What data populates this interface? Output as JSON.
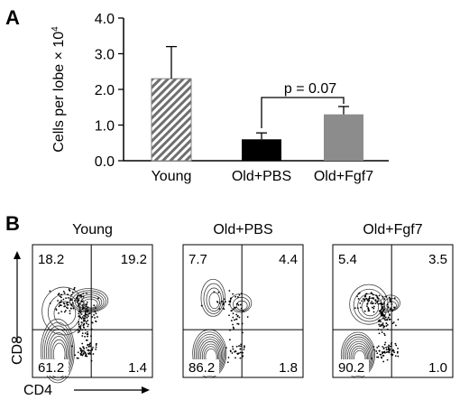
{
  "panels": {
    "a_label": "A",
    "b_label": "B"
  },
  "chart_data": [
    {
      "type": "bar",
      "panel": "A",
      "categories": [
        "Young",
        "Old+PBS",
        "Old+Fgf7"
      ],
      "values": [
        2.3,
        0.6,
        1.3
      ],
      "error_upper": [
        0.9,
        0.18,
        0.22
      ],
      "ylabel": "Cells per lobe × 10",
      "ylabel_sup": "4",
      "ylim": [
        0,
        4.0
      ],
      "ytick_labels": [
        "0.0",
        "1.0",
        "2.0",
        "3.0",
        "4.0"
      ],
      "bar_styles": [
        "diagonal-hatch",
        "solid",
        "solid"
      ],
      "bar_colors": [
        "#7f7f7f",
        "#000000",
        "#8c8c8c"
      ],
      "annotation": {
        "text": "p = 0.07",
        "between": [
          "Old+PBS",
          "Old+Fgf7"
        ]
      },
      "grid": false
    },
    {
      "type": "contour-flow",
      "panel": "B",
      "xlabel": "CD4",
      "ylabel": "CD8",
      "plots": [
        {
          "title": "Young",
          "q_ul": "18.2",
          "q_ur": "19.2",
          "q_ll": "61.2",
          "q_lr": "1.4"
        },
        {
          "title": "Old+PBS",
          "q_ul": "7.7",
          "q_ur": "4.4",
          "q_ll": "86.2",
          "q_lr": "1.8"
        },
        {
          "title": "Old+Fgf7",
          "q_ul": "5.4",
          "q_ur": "3.5",
          "q_ll": "90.2",
          "q_lr": "1.0"
        }
      ]
    }
  ]
}
